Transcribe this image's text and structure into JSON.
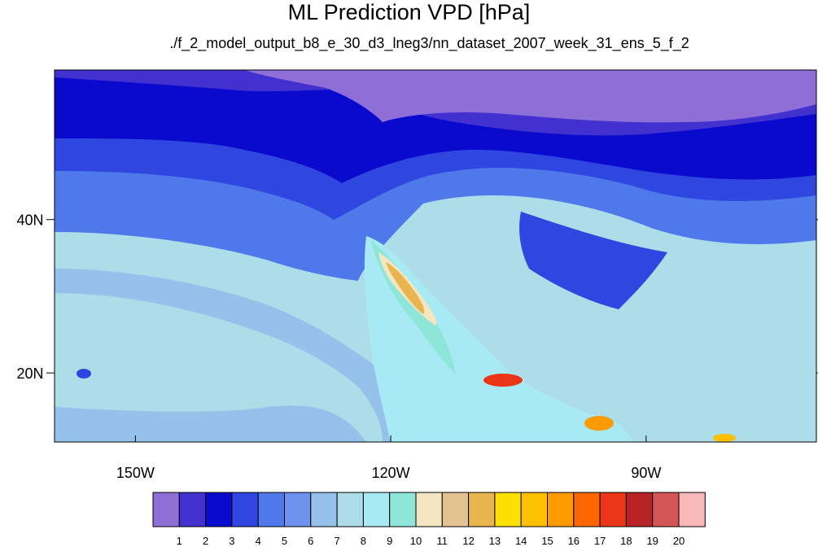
{
  "title": "ML Prediction VPD [hPa]",
  "subtitle": "./f_2_model_output_b8_e_30_d3_lneg3/nn_dataset_2007_week_31_ens_5_f_2",
  "axes": {
    "x_ticks": [
      {
        "label": "150W",
        "lon": -150
      },
      {
        "label": "120W",
        "lon": -120
      },
      {
        "label": "90W",
        "lon": -90
      }
    ],
    "y_ticks": [
      {
        "label": "40N",
        "lat": 40
      },
      {
        "label": "20N",
        "lat": 20
      }
    ],
    "lon_range": [
      -159.5,
      -70
    ],
    "lat_range": [
      11,
      59.5
    ]
  },
  "colorbar": {
    "labels": [
      "1",
      "2",
      "3",
      "4",
      "5",
      "6",
      "7",
      "8",
      "9",
      "10",
      "11",
      "12",
      "13",
      "14",
      "15",
      "16",
      "17",
      "18",
      "19",
      "20"
    ],
    "colors": [
      "#8e6fd8",
      "#4231cf",
      "#0a0ace",
      "#2f47e0",
      "#4f78ea",
      "#6e93ee",
      "#94c2eb",
      "#acdde8",
      "#a8eaf3",
      "#8ee6d8",
      "#f3e6c1",
      "#e2c291",
      "#e8b54f",
      "#fde000",
      "#fdc000",
      "#fd9a00",
      "#fd6600",
      "#ea3616",
      "#b82424",
      "#d45555",
      "#f9b7b7"
    ]
  }
}
